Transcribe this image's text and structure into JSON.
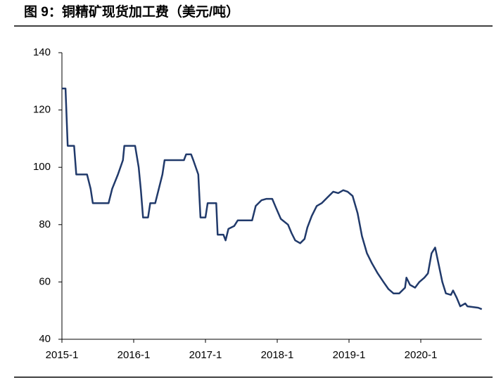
{
  "chart_data": {
    "type": "line",
    "title": "图 9：铜精矿现货加工费（美元/吨）",
    "x": [
      2015.0,
      2015.05,
      2015.08,
      2015.17,
      2015.2,
      2015.35,
      2015.4,
      2015.43,
      2015.65,
      2015.7,
      2015.78,
      2015.85,
      2015.87,
      2016.02,
      2016.07,
      2016.1,
      2016.13,
      2016.2,
      2016.23,
      2016.3,
      2016.35,
      2016.4,
      2016.43,
      2016.7,
      2016.73,
      2016.8,
      2016.83,
      2016.9,
      2016.93,
      2017.0,
      2017.03,
      2017.15,
      2017.17,
      2017.25,
      2017.28,
      2017.32,
      2017.4,
      2017.45,
      2017.65,
      2017.7,
      2017.78,
      2017.85,
      2017.93,
      2017.98,
      2018.05,
      2018.15,
      2018.2,
      2018.25,
      2018.32,
      2018.38,
      2018.42,
      2018.48,
      2018.55,
      2018.62,
      2018.7,
      2018.78,
      2018.85,
      2018.92,
      2018.98,
      2019.05,
      2019.12,
      2019.18,
      2019.25,
      2019.32,
      2019.4,
      2019.48,
      2019.55,
      2019.62,
      2019.7,
      2019.78,
      2019.8,
      2019.85,
      2019.92,
      2019.98,
      2020.05,
      2020.1,
      2020.15,
      2020.2,
      2020.25,
      2020.3,
      2020.35,
      2020.42,
      2020.45,
      2020.5,
      2020.55,
      2020.62,
      2020.65,
      2020.8,
      2020.85
    ],
    "series": [
      {
        "color": "#213a6b",
        "values": [
          127.5,
          127.5,
          107.5,
          107.5,
          97.5,
          97.5,
          92.5,
          87.5,
          87.5,
          92.5,
          97.5,
          102.5,
          107.5,
          107.5,
          100,
          92,
          82.5,
          82.5,
          87.5,
          87.5,
          92.5,
          97.5,
          102.5,
          102.5,
          104.5,
          104.5,
          102.5,
          97.5,
          82.5,
          82.5,
          87.5,
          87.5,
          76.5,
          76.5,
          74.5,
          78.5,
          79.5,
          81.5,
          81.5,
          86.5,
          88.5,
          89,
          89,
          86,
          82,
          80,
          77,
          74.5,
          73.5,
          75,
          79,
          83,
          86.5,
          87.5,
          89.5,
          91.5,
          91,
          92,
          91.5,
          90,
          84,
          76,
          70,
          66.5,
          63,
          60,
          57.5,
          56,
          56,
          58,
          61.5,
          59,
          58,
          60,
          61.5,
          63,
          70,
          72,
          66,
          60,
          56,
          55.5,
          57,
          54.5,
          51.5,
          52.5,
          51.5,
          51,
          50.5
        ]
      }
    ],
    "xlim": [
      2015,
      2020.85
    ],
    "xticks": [
      {
        "value": 2015,
        "label": "2015-1"
      },
      {
        "value": 2016,
        "label": "2016-1"
      },
      {
        "value": 2017,
        "label": "2017-1"
      },
      {
        "value": 2018,
        "label": "2018-1"
      },
      {
        "value": 2019,
        "label": "2019-1"
      },
      {
        "value": 2020,
        "label": "2020-1"
      }
    ],
    "ylim": [
      40,
      140
    ],
    "yticks": [
      40,
      60,
      80,
      100,
      120,
      140
    ],
    "grid": false
  }
}
